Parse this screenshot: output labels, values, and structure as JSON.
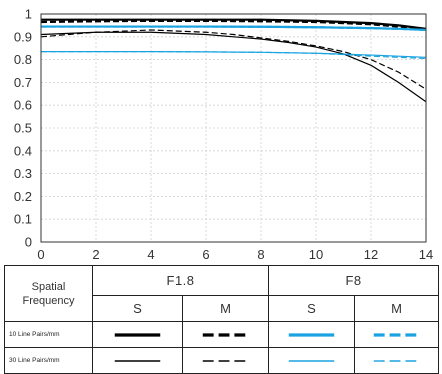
{
  "chart_data": {
    "type": "line",
    "xlim": [
      0,
      14
    ],
    "ylim": [
      0,
      1
    ],
    "x_ticks": [
      "0",
      "2",
      "4",
      "6",
      "8",
      "10",
      "12",
      "14"
    ],
    "y_ticks": [
      "0",
      "0.1",
      "0.2",
      "0.3",
      "0.4",
      "0.5",
      "0.6",
      "0.7",
      "0.8",
      "0.9",
      "1"
    ],
    "grid": true,
    "series": [
      {
        "color": "#000000",
        "dash": "solid",
        "stroke": "thick",
        "x": [
          0,
          2,
          4,
          6,
          8,
          10,
          11,
          12,
          13,
          14
        ],
        "y": [
          0.975,
          0.975,
          0.975,
          0.975,
          0.975,
          0.97,
          0.965,
          0.96,
          0.95,
          0.935
        ]
      },
      {
        "color": "#000000",
        "dash": "dashed",
        "stroke": "thick",
        "x": [
          0,
          2,
          4,
          6,
          8,
          10,
          11,
          12,
          13,
          14
        ],
        "y": [
          0.965,
          0.968,
          0.97,
          0.97,
          0.968,
          0.965,
          0.96,
          0.955,
          0.945,
          0.935
        ]
      },
      {
        "color": "#000000",
        "dash": "solid",
        "stroke": "thin",
        "x": [
          0,
          1,
          2,
          3,
          4,
          5,
          6,
          7,
          8,
          9,
          10,
          11,
          12,
          13,
          14
        ],
        "y": [
          0.91,
          0.915,
          0.92,
          0.92,
          0.92,
          0.915,
          0.91,
          0.9,
          0.89,
          0.875,
          0.855,
          0.825,
          0.775,
          0.7,
          0.615
        ]
      },
      {
        "color": "#000000",
        "dash": "dashed",
        "stroke": "thin",
        "x": [
          0,
          1,
          2,
          3,
          4,
          5,
          6,
          7,
          8,
          9,
          10,
          11,
          12,
          13,
          14
        ],
        "y": [
          0.9,
          0.91,
          0.92,
          0.925,
          0.93,
          0.925,
          0.92,
          0.91,
          0.895,
          0.88,
          0.86,
          0.835,
          0.8,
          0.745,
          0.67
        ]
      },
      {
        "color": "#1aa3e0",
        "dash": "solid",
        "stroke": "thick",
        "x": [
          0,
          2,
          4,
          6,
          8,
          10,
          11,
          12,
          13,
          14
        ],
        "y": [
          0.945,
          0.945,
          0.945,
          0.945,
          0.944,
          0.942,
          0.94,
          0.938,
          0.935,
          0.93
        ]
      },
      {
        "color": "#1aa3e0",
        "dash": "dashed",
        "stroke": "thick",
        "x": [
          0,
          2,
          4,
          6,
          8,
          10,
          11,
          12,
          13,
          14
        ],
        "y": [
          0.945,
          0.945,
          0.945,
          0.945,
          0.944,
          0.942,
          0.94,
          0.938,
          0.935,
          0.93
        ]
      },
      {
        "color": "#1aa3e0",
        "dash": "solid",
        "stroke": "thin",
        "x": [
          0,
          2,
          4,
          6,
          8,
          10,
          11,
          12,
          13,
          14
        ],
        "y": [
          0.835,
          0.835,
          0.835,
          0.834,
          0.832,
          0.828,
          0.824,
          0.82,
          0.815,
          0.81
        ]
      },
      {
        "color": "#1aa3e0",
        "dash": "dashed",
        "stroke": "thin",
        "x": [
          0,
          2,
          4,
          6,
          8,
          10,
          11,
          12,
          13,
          14
        ],
        "y": [
          0.835,
          0.835,
          0.835,
          0.834,
          0.832,
          0.828,
          0.822,
          0.815,
          0.81,
          0.805
        ]
      }
    ]
  },
  "legend": {
    "spatial_label": "Spatial Frequency",
    "aperture_1": "F1.8",
    "aperture_2": "F8",
    "s_label": "S",
    "m_label": "M",
    "row_10": "10 Line Pairs/mm",
    "row_30": "30 Line Pairs/mm",
    "colors": {
      "f18": "#000000",
      "f8": "#1aa3e0"
    }
  }
}
